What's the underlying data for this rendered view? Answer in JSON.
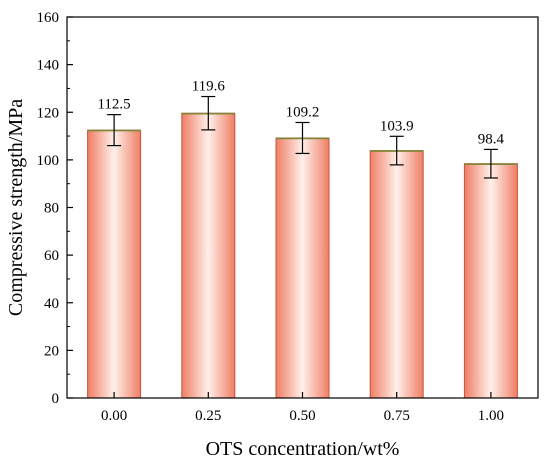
{
  "chart_data": {
    "type": "bar",
    "title": "",
    "xlabel": "OTS concentration/wt%",
    "ylabel": "Compressive strength/MPa",
    "categories": [
      "0.00",
      "0.25",
      "0.50",
      "0.75",
      "1.00"
    ],
    "values": [
      112.5,
      119.6,
      109.2,
      103.9,
      98.4
    ],
    "error": [
      6.5,
      7.0,
      6.5,
      6.0,
      6.0
    ],
    "value_labels": [
      "112.5",
      "119.6",
      "109.2",
      "103.9",
      "98.4"
    ],
    "ylim": [
      0,
      160
    ],
    "yticks": [
      0,
      20,
      40,
      60,
      80,
      100,
      120,
      140,
      160
    ],
    "ytick_labels": [
      "0",
      "20",
      "40",
      "60",
      "80",
      "100",
      "120",
      "140",
      "160"
    ],
    "grid": false,
    "colors": {
      "bar_edge": "#c8563a",
      "bar_center": "#fff0ea",
      "bar_side": "#f07e66",
      "bar_top": "#7d8a3a",
      "axis": "#000000"
    }
  }
}
